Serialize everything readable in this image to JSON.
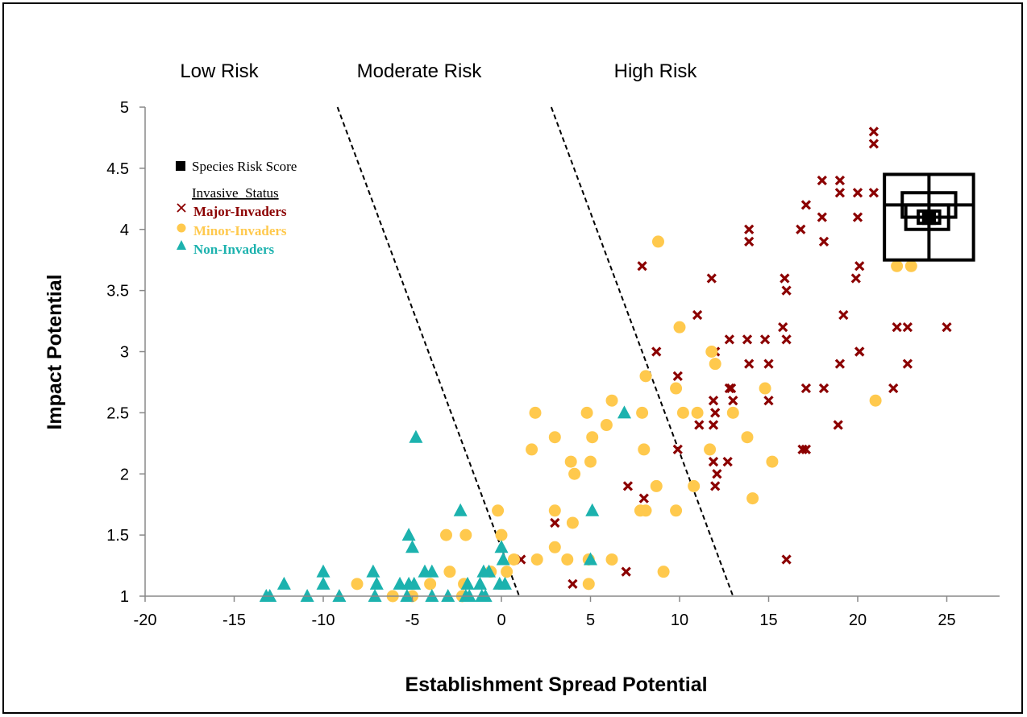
{
  "chart_data": {
    "type": "scatter",
    "title": "",
    "xlabel": "Establishment Spread Potential",
    "ylabel": "Impact Potential",
    "xlim": [
      -20,
      28
    ],
    "ylim": [
      1,
      5
    ],
    "x_ticks": [
      -20,
      -15,
      -10,
      -5,
      0,
      5,
      10,
      15,
      20,
      25
    ],
    "x_tick_labels": [
      "-20",
      "-15",
      "-10",
      "-5",
      "0",
      "5",
      "10",
      "15",
      "20",
      "25"
    ],
    "y_ticks": [
      1,
      1.5,
      2,
      2.5,
      3,
      3.5,
      4,
      4.5,
      5
    ],
    "y_tick_labels": [
      "1",
      "1.5",
      "2",
      "2.5",
      "3",
      "3.5",
      "4",
      "4.5",
      "5"
    ],
    "grid": false,
    "legend_position": "top-left",
    "legend": {
      "score_label": "Species Risk Score",
      "group_title": "Invasive_Status",
      "entries": [
        "Major-Invaders",
        "Minor-Invaders",
        "Non-Invaders"
      ]
    },
    "zone_labels": [
      "Low Risk",
      "Moderate Risk",
      "High Risk"
    ],
    "divider_lines": [
      {
        "from": [
          -9.2,
          5
        ],
        "to": [
          1,
          1
        ]
      },
      {
        "from": [
          2.8,
          5
        ],
        "to": [
          13,
          1
        ]
      }
    ],
    "series": [
      {
        "name": "Major-Invaders",
        "marker": "x",
        "color": "#8b0000",
        "points": [
          [
            20.9,
            4.8
          ],
          [
            20.9,
            4.7
          ],
          [
            18,
            4.4
          ],
          [
            19,
            4.4
          ],
          [
            17.1,
            4.2
          ],
          [
            19,
            4.3
          ],
          [
            20,
            4.3
          ],
          [
            20.9,
            4.3
          ],
          [
            18,
            4.1
          ],
          [
            20,
            4.1
          ],
          [
            16.8,
            4
          ],
          [
            13.9,
            4
          ],
          [
            13.9,
            3.9
          ],
          [
            18.1,
            3.9
          ],
          [
            7.9,
            3.7
          ],
          [
            20.1,
            3.7
          ],
          [
            19.9,
            3.6
          ],
          [
            11.8,
            3.6
          ],
          [
            15.9,
            3.6
          ],
          [
            16,
            3.5
          ],
          [
            23,
            3.7
          ],
          [
            11,
            3.3
          ],
          [
            19.2,
            3.3
          ],
          [
            15.8,
            3.2
          ],
          [
            22.2,
            3.2
          ],
          [
            22.8,
            3.2
          ],
          [
            25,
            3.2
          ],
          [
            12.8,
            3.1
          ],
          [
            13.8,
            3.1
          ],
          [
            14.8,
            3.1
          ],
          [
            16,
            3.1
          ],
          [
            8.7,
            3
          ],
          [
            20.1,
            3
          ],
          [
            20.1,
            3
          ],
          [
            12,
            3
          ],
          [
            13.9,
            2.9
          ],
          [
            15,
            2.9
          ],
          [
            19,
            2.9
          ],
          [
            22.8,
            2.9
          ],
          [
            9.9,
            2.8
          ],
          [
            12.8,
            2.7
          ],
          [
            12.9,
            2.7
          ],
          [
            17.1,
            2.7
          ],
          [
            18.1,
            2.7
          ],
          [
            22,
            2.7
          ],
          [
            11.9,
            2.6
          ],
          [
            13,
            2.6
          ],
          [
            15,
            2.6
          ],
          [
            12,
            2.5
          ],
          [
            11.1,
            2.4
          ],
          [
            11.9,
            2.4
          ],
          [
            18.9,
            2.4
          ],
          [
            9.9,
            2.2
          ],
          [
            16.9,
            2.2
          ],
          [
            17.1,
            2.2
          ],
          [
            11.9,
            2.1
          ],
          [
            12.7,
            2.1
          ],
          [
            12.1,
            2
          ],
          [
            7.1,
            1.9
          ],
          [
            12,
            1.9
          ],
          [
            8,
            1.8
          ],
          [
            16,
            1.3
          ],
          [
            3,
            1.6
          ],
          [
            4,
            1.1
          ],
          [
            7,
            1.2
          ],
          [
            1.1,
            1.3
          ]
        ]
      },
      {
        "name": "Minor-Invaders",
        "marker": "circle",
        "color": "#ffc94d",
        "points": [
          [
            8.8,
            3.9
          ],
          [
            22.2,
            3.7
          ],
          [
            23,
            3.7
          ],
          [
            10,
            3.2
          ],
          [
            11.8,
            3
          ],
          [
            12,
            2.9
          ],
          [
            8.1,
            2.8
          ],
          [
            9.8,
            2.7
          ],
          [
            14.8,
            2.7
          ],
          [
            21,
            2.6
          ],
          [
            6.2,
            2.6
          ],
          [
            4.8,
            2.5
          ],
          [
            7.9,
            2.5
          ],
          [
            10.2,
            2.5
          ],
          [
            11,
            2.5
          ],
          [
            13,
            2.5
          ],
          [
            1.9,
            2.5
          ],
          [
            5.9,
            2.4
          ],
          [
            3,
            2.3
          ],
          [
            5.1,
            2.3
          ],
          [
            13.8,
            2.3
          ],
          [
            8,
            2.2
          ],
          [
            11.7,
            2.2
          ],
          [
            1.7,
            2.2
          ],
          [
            3.9,
            2.1
          ],
          [
            5,
            2.1
          ],
          [
            15.2,
            2.1
          ],
          [
            4.1,
            2
          ],
          [
            8.7,
            1.9
          ],
          [
            10.8,
            1.9
          ],
          [
            14.1,
            1.8
          ],
          [
            9.8,
            1.7
          ],
          [
            8.1,
            1.7
          ],
          [
            7.8,
            1.7
          ],
          [
            3,
            1.7
          ],
          [
            -0.2,
            1.7
          ],
          [
            4,
            1.6
          ],
          [
            -3.1,
            1.5
          ],
          [
            -2,
            1.5
          ],
          [
            0,
            1.5
          ],
          [
            2,
            1.3
          ],
          [
            3,
            1.4
          ],
          [
            3.7,
            1.3
          ],
          [
            6.2,
            1.3
          ],
          [
            4.9,
            1.3
          ],
          [
            0.7,
            1.3
          ],
          [
            9.1,
            1.2
          ],
          [
            -2.9,
            1.2
          ],
          [
            -0.6,
            1.2
          ],
          [
            0.3,
            1.2
          ],
          [
            -8.1,
            1.1
          ],
          [
            -4,
            1.1
          ],
          [
            -2.1,
            1.1
          ],
          [
            4.9,
            1.1
          ],
          [
            -6.1,
            1
          ],
          [
            -5,
            1
          ],
          [
            -2.2,
            1
          ]
        ]
      },
      {
        "name": "Non-Invaders",
        "marker": "triangle",
        "color": "#1cb2ae",
        "points": [
          [
            -4.8,
            2.3
          ],
          [
            6.9,
            2.5
          ],
          [
            -2.3,
            1.7
          ],
          [
            5.1,
            1.7
          ],
          [
            -5.2,
            1.5
          ],
          [
            -5,
            1.4
          ],
          [
            0,
            1.4
          ],
          [
            5,
            1.3
          ],
          [
            0.1,
            1.3
          ],
          [
            -4.3,
            1.2
          ],
          [
            -3.9,
            1.2
          ],
          [
            -7.2,
            1.2
          ],
          [
            -10,
            1.2
          ],
          [
            -1,
            1.2
          ],
          [
            -0.7,
            1.2
          ],
          [
            -12.2,
            1.1
          ],
          [
            -10,
            1.1
          ],
          [
            -7,
            1.1
          ],
          [
            -5.7,
            1.1
          ],
          [
            -5.2,
            1.1
          ],
          [
            -4.9,
            1.1
          ],
          [
            -1.9,
            1.1
          ],
          [
            -1.2,
            1.1
          ],
          [
            -0.1,
            1.1
          ],
          [
            0.2,
            1.1
          ],
          [
            -13.2,
            1
          ],
          [
            -13,
            1
          ],
          [
            -10.9,
            1
          ],
          [
            -9.1,
            1
          ],
          [
            -7.1,
            1
          ],
          [
            -5.3,
            1
          ],
          [
            -3.9,
            1
          ],
          [
            -3,
            1
          ],
          [
            -2,
            1
          ],
          [
            -1.8,
            1
          ],
          [
            -1.1,
            1
          ],
          [
            -0.9,
            1
          ]
        ]
      }
    ],
    "risk_score_markers": [
      {
        "x": 24,
        "y": 4.1,
        "half_x": 2.5,
        "half_y": 0.35
      },
      {
        "x": 24,
        "y": 4.2,
        "half_x": 1.5,
        "half_y": 0.1
      },
      {
        "x": 23.9,
        "y": 4.1,
        "half_x": 1.2,
        "half_y": 0.1
      },
      {
        "x": 24,
        "y": 4.1,
        "half_x": 0.6,
        "half_y": 0.05
      },
      {
        "x": 24,
        "y": 4.1,
        "half_x": 0.3,
        "half_y": 0.05
      }
    ],
    "risk_score_crosshair": {
      "x": 24,
      "y": 4.2
    }
  }
}
